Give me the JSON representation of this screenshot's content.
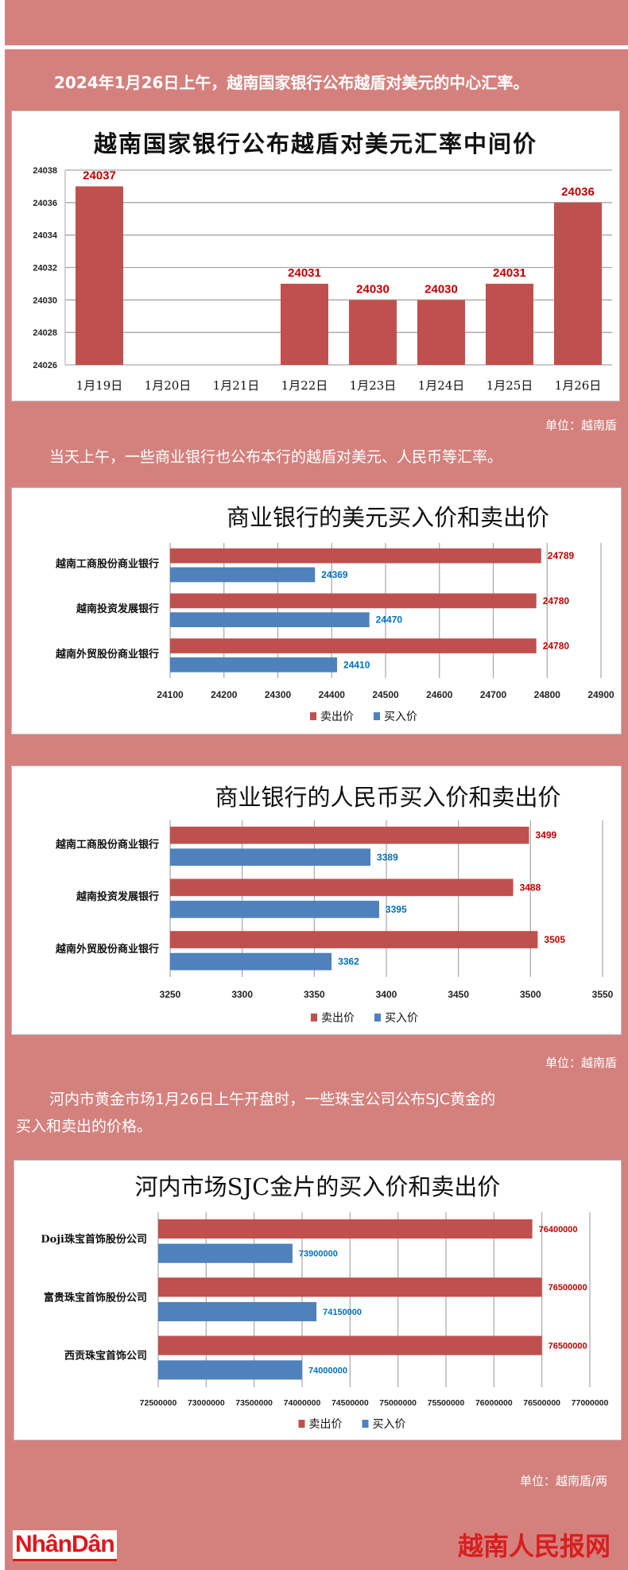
{
  "intro": "2024年1月26日上午，越南国家银行公布越盾对美元的中心汇率。",
  "unit_vnd": "单位：越南盾",
  "intro2": "当天上午，一些商业银行也公布本行的越盾对美元、人民币等汇率。",
  "unit_vnd_2": "单位：越南盾",
  "gold_para_line1": "河内市黄金市场1月26日上午开盘时，一些珠宝公司公布SJC黄金的",
  "gold_para_line2": "买入和卖出的价格。",
  "unit_gold": "单位：越南盾/两",
  "logo_left": "NhânDân",
  "logo_right": "越南人民报网",
  "colors": {
    "background": "#d4817e",
    "sell": "#c0504d",
    "buy": "#4f81bd",
    "sell_label": "#c00000",
    "buy_label": "#0070c0"
  },
  "chart_data": [
    {
      "type": "bar",
      "orientation": "vertical",
      "title": "越南国家银行公布越盾对美元汇率中间价",
      "categories": [
        "1月19日",
        "1月20日",
        "1月21日",
        "1月22日",
        "1月23日",
        "1月24日",
        "1月25日",
        "1月26日"
      ],
      "values": [
        24037,
        null,
        null,
        24031,
        24030,
        24030,
        24031,
        24036
      ],
      "value_labels": [
        "24037",
        "",
        "",
        "24031",
        "24030",
        "24030",
        "24031",
        "24036"
      ],
      "ylim": [
        24026,
        24038
      ],
      "yticks": [
        "24026",
        "24028",
        "24030",
        "24032",
        "24034",
        "24036",
        "24038"
      ],
      "grid": true,
      "legend": "none"
    },
    {
      "type": "bar",
      "orientation": "horizontal",
      "title": "商业银行的美元买入价和卖出价",
      "categories": [
        "越南工商股份商业银行",
        "越南投资发展银行",
        "越南外贸股份商业银行"
      ],
      "series": [
        {
          "name": "卖出价",
          "values": [
            24789,
            24780,
            24780
          ],
          "labels": [
            "24789",
            "24780",
            "24780"
          ]
        },
        {
          "name": "买入价",
          "values": [
            24369,
            24470,
            24410
          ],
          "labels": [
            "24369",
            "24470",
            "24410"
          ]
        }
      ],
      "xlim": [
        24100,
        24900
      ],
      "xticks": [
        "24100",
        "24200",
        "24300",
        "24400",
        "24500",
        "24600",
        "24700",
        "24800",
        "24900"
      ],
      "grid": true,
      "legend": "bottom"
    },
    {
      "type": "bar",
      "orientation": "horizontal",
      "title": "商业银行的人民币买入价和卖出价",
      "categories": [
        "越南工商股份商业银行",
        "越南投资发展银行",
        "越南外贸股份商业银行"
      ],
      "series": [
        {
          "name": "卖出价",
          "values": [
            3499,
            3488,
            3505
          ],
          "labels": [
            "3499",
            "3488",
            "3505"
          ]
        },
        {
          "name": "买入价",
          "values": [
            3389,
            3395,
            3362
          ],
          "labels": [
            "3389",
            "3395",
            "3362"
          ]
        }
      ],
      "xlim": [
        3250,
        3550
      ],
      "xticks": [
        "3250",
        "3300",
        "3350",
        "3400",
        "3450",
        "3500",
        "3550"
      ],
      "grid": true,
      "legend": "bottom"
    },
    {
      "type": "bar",
      "orientation": "horizontal",
      "title": "河内市场SJC金片的买入价和卖出价",
      "categories": [
        "Doji珠宝首饰股份公司",
        "富贵珠宝首饰股份公司",
        "西贡珠宝首饰公司"
      ],
      "series": [
        {
          "name": "卖出价",
          "values": [
            76400000,
            76500000,
            76500000
          ],
          "labels": [
            "76400000",
            "76500000",
            "76500000"
          ]
        },
        {
          "name": "买入价",
          "values": [
            73900000,
            74150000,
            74000000
          ],
          "labels": [
            "73900000",
            "74150000",
            "74000000"
          ]
        }
      ],
      "xlim": [
        72500000,
        77000000
      ],
      "xticks": [
        "72500000",
        "73000000",
        "73500000",
        "74000000",
        "74500000",
        "75000000",
        "75500000",
        "76000000",
        "76500000",
        "77000000"
      ],
      "grid": true,
      "legend": "bottom"
    }
  ]
}
